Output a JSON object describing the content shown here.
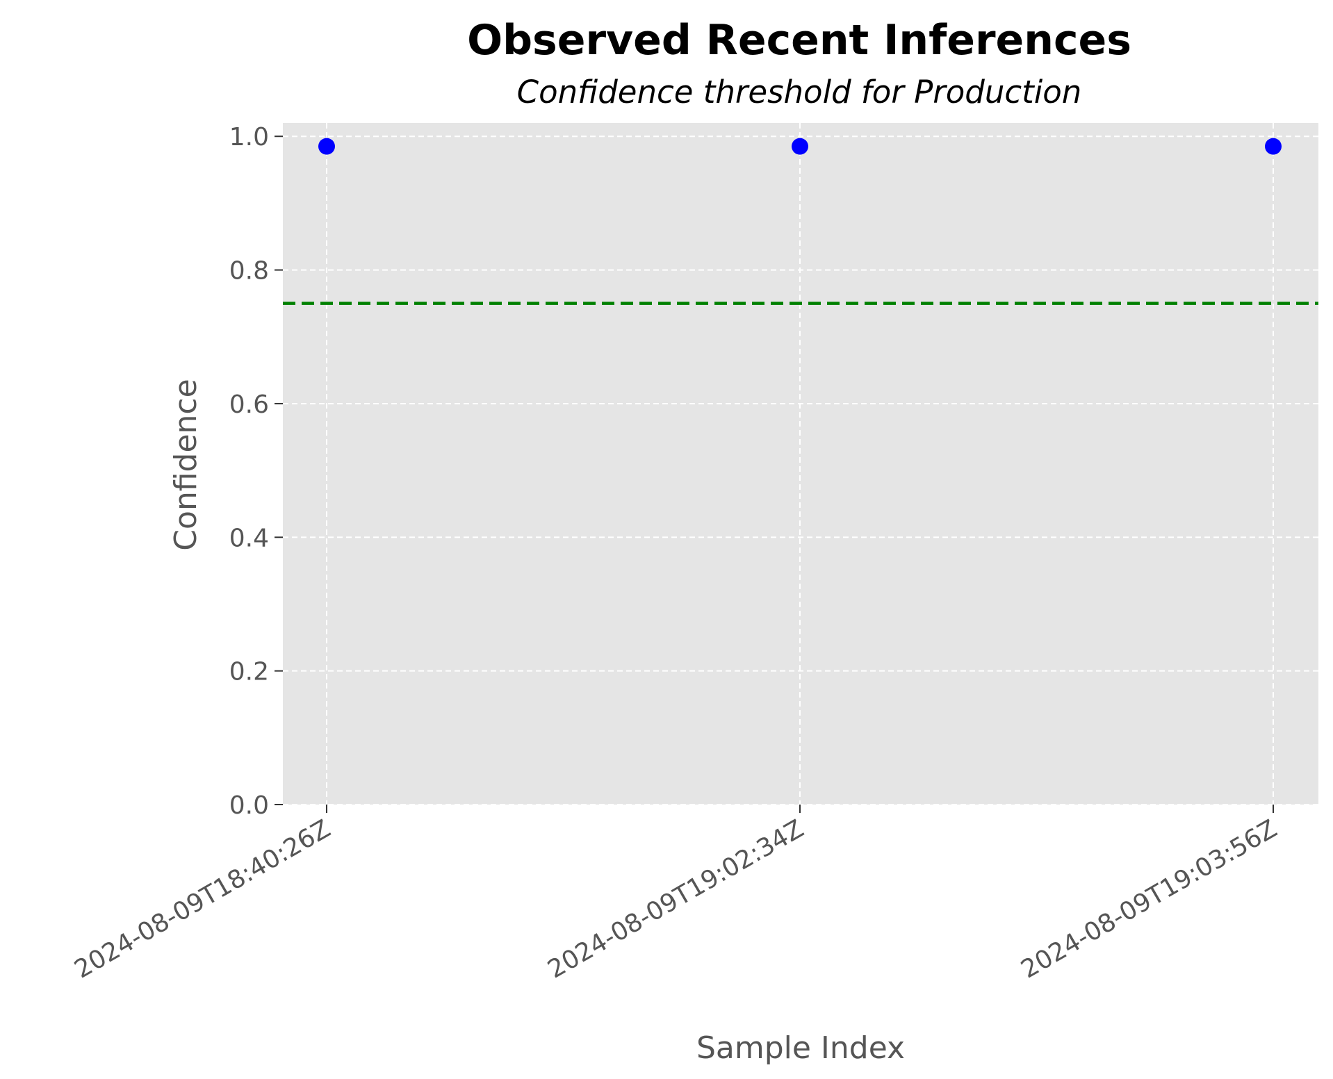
{
  "chart_data": {
    "type": "scatter",
    "title": "Observed Recent Inferences",
    "subtitle": "Confidence threshold for Production",
    "xlabel": "Sample Index",
    "ylabel": "Confidence",
    "categories": [
      "2024-08-09T18:40:26Z",
      "2024-08-09T19:02:34Z",
      "2024-08-09T19:03:56Z"
    ],
    "series": [
      {
        "values": [
          0.985,
          0.985,
          0.985
        ],
        "color": "#0000ff"
      }
    ],
    "threshold": {
      "value": 0.75,
      "color": "#008000",
      "style": "dashed"
    },
    "ylim": [
      0,
      1.02
    ],
    "yticks": [
      0.0,
      0.2,
      0.4,
      0.6,
      0.8,
      1.0
    ],
    "ytick_labels": [
      "0.0",
      "0.2",
      "0.4",
      "0.6",
      "0.8",
      "1.0"
    ],
    "grid": true,
    "plot_background": "#e5e5e5"
  }
}
